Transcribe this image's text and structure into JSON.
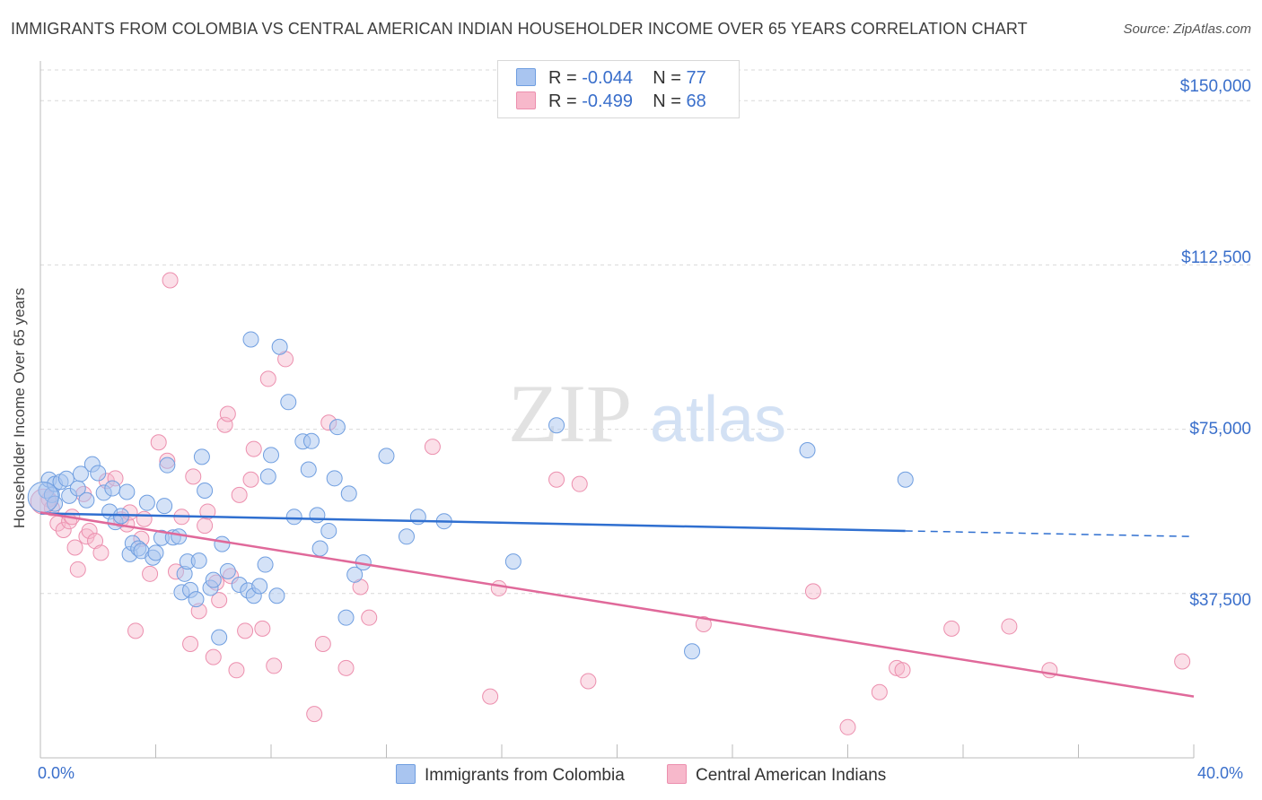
{
  "title": "IMMIGRANTS FROM COLOMBIA VS CENTRAL AMERICAN INDIAN HOUSEHOLDER INCOME OVER 65 YEARS CORRELATION CHART",
  "source": "Source: ZipAtlas.com",
  "watermark": {
    "zip": "ZIP",
    "atlas": "atlas"
  },
  "legend": {
    "rows": [
      {
        "r_label": "R =",
        "r_value": "-0.044",
        "n_label": "N =",
        "n_value": "77"
      },
      {
        "r_label": "R =",
        "r_value": "-0.499",
        "n_label": "N =",
        "n_value": "68"
      }
    ]
  },
  "bottom_legend": {
    "series1": "Immigrants from Colombia",
    "series2": "Central American Indians"
  },
  "colors": {
    "series1_fill": "#a9c5f0",
    "series1_stroke": "#6f9ee0",
    "series1_line": "#2f6fd0",
    "series2_fill": "#f7b8cb",
    "series2_stroke": "#ec8fae",
    "series2_line": "#e0699a",
    "axis_text": "#3a6fcb",
    "grid": "#d9d9d9"
  },
  "chart_data": {
    "type": "scatter",
    "title": "IMMIGRANTS FROM COLOMBIA VS CENTRAL AMERICAN INDIAN HOUSEHOLDER INCOME OVER 65 YEARS CORRELATION CHART",
    "xlabel": "",
    "ylabel": "Householder Income Over 65 years",
    "xlim": [
      0,
      40
    ],
    "ylim": [
      0,
      157000
    ],
    "x_tick_labels": [
      "0.0%",
      "40.0%"
    ],
    "y_ticks": [
      37500,
      75000,
      112500,
      150000
    ],
    "y_tick_labels": [
      "$37,500",
      "$75,000",
      "$112,500",
      "$150,000"
    ],
    "grid": "horizontal dashed",
    "series": [
      {
        "name": "Immigrants from Colombia",
        "trend": {
          "x": [
            0,
            30
          ],
          "y": [
            55800,
            51800
          ],
          "dashed_extension_to_x": 40,
          "dashed_end_y": 50500
        },
        "points": [
          [
            0.2,
            61000
          ],
          [
            0.3,
            63500
          ],
          [
            0.4,
            60000
          ],
          [
            0.5,
            62500
          ],
          [
            0.5,
            58000
          ],
          [
            0.7,
            63000
          ],
          [
            0.9,
            63700
          ],
          [
            1.0,
            59800
          ],
          [
            1.3,
            61500
          ],
          [
            1.4,
            64800
          ],
          [
            1.6,
            58800
          ],
          [
            1.8,
            67000
          ],
          [
            2.0,
            65000
          ],
          [
            2.2,
            60500
          ],
          [
            2.4,
            56200
          ],
          [
            2.5,
            61500
          ],
          [
            2.6,
            53800
          ],
          [
            2.8,
            55200
          ],
          [
            3.0,
            60700
          ],
          [
            3.1,
            46500
          ],
          [
            3.2,
            49000
          ],
          [
            3.4,
            47800
          ],
          [
            3.5,
            47200
          ],
          [
            3.7,
            58200
          ],
          [
            3.9,
            45700
          ],
          [
            4.0,
            46800
          ],
          [
            4.2,
            50200
          ],
          [
            4.3,
            57500
          ],
          [
            4.4,
            66800
          ],
          [
            4.6,
            50300
          ],
          [
            4.8,
            50500
          ],
          [
            4.9,
            37800
          ],
          [
            5.0,
            42000
          ],
          [
            5.1,
            44800
          ],
          [
            5.2,
            38300
          ],
          [
            5.4,
            36200
          ],
          [
            5.5,
            45000
          ],
          [
            5.6,
            68700
          ],
          [
            5.7,
            61000
          ],
          [
            5.9,
            38800
          ],
          [
            6.0,
            40600
          ],
          [
            6.2,
            27500
          ],
          [
            6.3,
            48800
          ],
          [
            6.5,
            42600
          ],
          [
            6.9,
            39500
          ],
          [
            7.2,
            38200
          ],
          [
            7.4,
            37000
          ],
          [
            7.6,
            39200
          ],
          [
            7.8,
            44100
          ],
          [
            7.9,
            64200
          ],
          [
            8.0,
            69100
          ],
          [
            8.2,
            37000
          ],
          [
            7.3,
            95500
          ],
          [
            8.3,
            93800
          ],
          [
            8.6,
            81200
          ],
          [
            8.8,
            55000
          ],
          [
            9.1,
            72200
          ],
          [
            9.3,
            65800
          ],
          [
            9.4,
            72300
          ],
          [
            9.7,
            47800
          ],
          [
            9.6,
            55400
          ],
          [
            10.0,
            51800
          ],
          [
            10.2,
            63800
          ],
          [
            10.3,
            75500
          ],
          [
            10.6,
            32000
          ],
          [
            10.7,
            60300
          ],
          [
            10.9,
            41800
          ],
          [
            11.2,
            44600
          ],
          [
            12.0,
            68900
          ],
          [
            12.7,
            50500
          ],
          [
            13.1,
            55000
          ],
          [
            14.0,
            54000
          ],
          [
            16.4,
            44800
          ],
          [
            17.9,
            75900
          ],
          [
            22.6,
            24300
          ],
          [
            26.6,
            70200
          ],
          [
            30.0,
            63500
          ]
        ]
      },
      {
        "name": "Central American Indians",
        "trend": {
          "x": [
            0,
            40
          ],
          "y": [
            56000,
            14000
          ]
        },
        "points": [
          [
            0.3,
            59000
          ],
          [
            0.4,
            57000
          ],
          [
            0.6,
            53500
          ],
          [
            0.8,
            52000
          ],
          [
            1.0,
            54000
          ],
          [
            1.1,
            55000
          ],
          [
            1.2,
            48000
          ],
          [
            1.3,
            43000
          ],
          [
            1.5,
            60200
          ],
          [
            1.6,
            50500
          ],
          [
            1.7,
            51800
          ],
          [
            1.9,
            49500
          ],
          [
            2.1,
            46800
          ],
          [
            2.3,
            63200
          ],
          [
            2.6,
            63800
          ],
          [
            2.8,
            54400
          ],
          [
            3.0,
            53300
          ],
          [
            3.1,
            56000
          ],
          [
            3.3,
            29000
          ],
          [
            3.5,
            50000
          ],
          [
            3.6,
            54500
          ],
          [
            3.8,
            42000
          ],
          [
            4.1,
            72000
          ],
          [
            4.4,
            67800
          ],
          [
            4.5,
            109000
          ],
          [
            4.7,
            42500
          ],
          [
            4.9,
            55000
          ],
          [
            5.2,
            26000
          ],
          [
            5.3,
            64200
          ],
          [
            5.5,
            33500
          ],
          [
            5.7,
            53000
          ],
          [
            5.8,
            56200
          ],
          [
            6.0,
            23000
          ],
          [
            6.1,
            40000
          ],
          [
            6.2,
            36000
          ],
          [
            6.4,
            76000
          ],
          [
            6.5,
            78500
          ],
          [
            6.6,
            41500
          ],
          [
            6.8,
            20000
          ],
          [
            6.9,
            60000
          ],
          [
            7.1,
            29000
          ],
          [
            7.3,
            63500
          ],
          [
            7.4,
            70500
          ],
          [
            7.7,
            29500
          ],
          [
            7.9,
            86500
          ],
          [
            8.1,
            21000
          ],
          [
            8.5,
            91000
          ],
          [
            9.5,
            10000
          ],
          [
            9.8,
            26000
          ],
          [
            10.0,
            76500
          ],
          [
            10.6,
            20500
          ],
          [
            11.1,
            39000
          ],
          [
            11.4,
            32000
          ],
          [
            13.6,
            71000
          ],
          [
            15.6,
            14000
          ],
          [
            15.9,
            38700
          ],
          [
            17.9,
            63500
          ],
          [
            18.7,
            62500
          ],
          [
            19.0,
            17500
          ],
          [
            23.0,
            30500
          ],
          [
            26.8,
            38000
          ],
          [
            28.0,
            7000
          ],
          [
            29.1,
            15000
          ],
          [
            29.7,
            20500
          ],
          [
            29.9,
            20000
          ],
          [
            31.6,
            29500
          ],
          [
            33.6,
            30000
          ],
          [
            35.0,
            20000
          ],
          [
            39.6,
            22000
          ]
        ]
      }
    ]
  },
  "yaxis_label": "Householder Income Over 65 years"
}
